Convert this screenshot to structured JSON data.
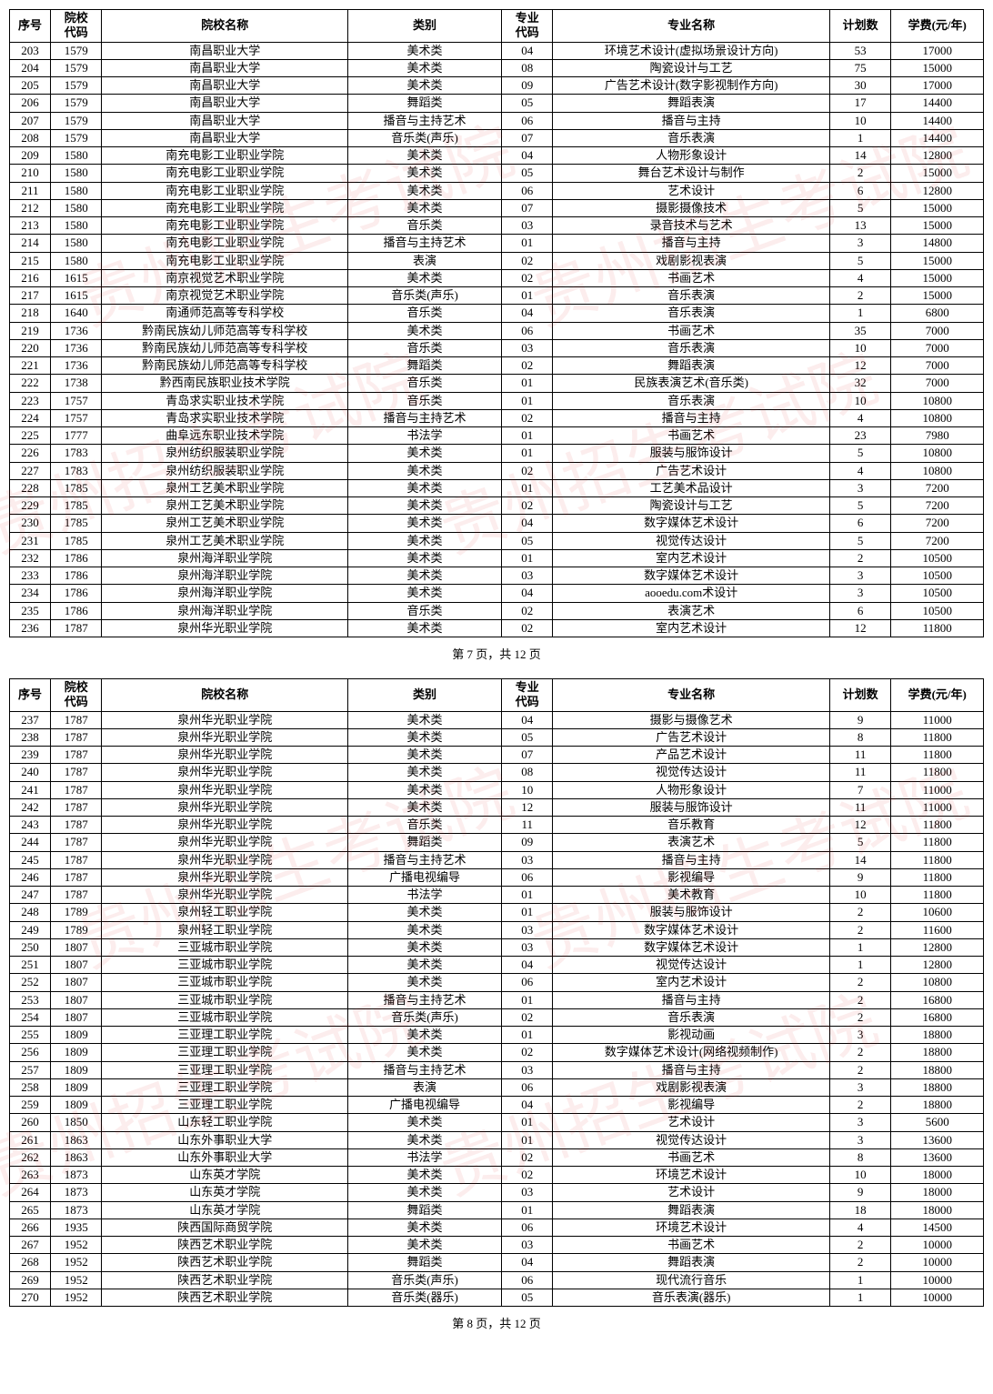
{
  "headers": {
    "seq": "序号",
    "code": "院校\n代码",
    "school": "院校名称",
    "cat": "类别",
    "mcode": "专业\n代码",
    "major": "专业名称",
    "plan": "计划数",
    "fee": "学费(元/年)"
  },
  "pageLabel1": "第 7 页，共 12 页",
  "pageLabel2": "第 8 页，共 12 页",
  "watermarkText": "贵州招生考试院",
  "table1": [
    [
      "203",
      "1579",
      "南昌职业大学",
      "美术类",
      "04",
      "环境艺术设计(虚拟场景设计方向)",
      "53",
      "17000"
    ],
    [
      "204",
      "1579",
      "南昌职业大学",
      "美术类",
      "08",
      "陶瓷设计与工艺",
      "75",
      "15000"
    ],
    [
      "205",
      "1579",
      "南昌职业大学",
      "美术类",
      "09",
      "广告艺术设计(数字影视制作方向)",
      "30",
      "17000"
    ],
    [
      "206",
      "1579",
      "南昌职业大学",
      "舞蹈类",
      "05",
      "舞蹈表演",
      "17",
      "14400"
    ],
    [
      "207",
      "1579",
      "南昌职业大学",
      "播音与主持艺术",
      "06",
      "播音与主持",
      "10",
      "14400"
    ],
    [
      "208",
      "1579",
      "南昌职业大学",
      "音乐类(声乐)",
      "07",
      "音乐表演",
      "1",
      "14400"
    ],
    [
      "209",
      "1580",
      "南充电影工业职业学院",
      "美术类",
      "04",
      "人物形象设计",
      "14",
      "12800"
    ],
    [
      "210",
      "1580",
      "南充电影工业职业学院",
      "美术类",
      "05",
      "舞台艺术设计与制作",
      "2",
      "15000"
    ],
    [
      "211",
      "1580",
      "南充电影工业职业学院",
      "美术类",
      "06",
      "艺术设计",
      "6",
      "12800"
    ],
    [
      "212",
      "1580",
      "南充电影工业职业学院",
      "美术类",
      "07",
      "摄影摄像技术",
      "5",
      "15000"
    ],
    [
      "213",
      "1580",
      "南充电影工业职业学院",
      "音乐类",
      "03",
      "录音技术与艺术",
      "13",
      "15000"
    ],
    [
      "214",
      "1580",
      "南充电影工业职业学院",
      "播音与主持艺术",
      "01",
      "播音与主持",
      "3",
      "14800"
    ],
    [
      "215",
      "1580",
      "南充电影工业职业学院",
      "表演",
      "02",
      "戏剧影视表演",
      "5",
      "15000"
    ],
    [
      "216",
      "1615",
      "南京视觉艺术职业学院",
      "美术类",
      "02",
      "书画艺术",
      "4",
      "15000"
    ],
    [
      "217",
      "1615",
      "南京视觉艺术职业学院",
      "音乐类(声乐)",
      "01",
      "音乐表演",
      "2",
      "15000"
    ],
    [
      "218",
      "1640",
      "南通师范高等专科学校",
      "音乐类",
      "04",
      "音乐表演",
      "1",
      "6800"
    ],
    [
      "219",
      "1736",
      "黔南民族幼儿师范高等专科学校",
      "美术类",
      "06",
      "书画艺术",
      "35",
      "7000"
    ],
    [
      "220",
      "1736",
      "黔南民族幼儿师范高等专科学校",
      "音乐类",
      "03",
      "音乐表演",
      "10",
      "7000"
    ],
    [
      "221",
      "1736",
      "黔南民族幼儿师范高等专科学校",
      "舞蹈类",
      "02",
      "舞蹈表演",
      "12",
      "7000"
    ],
    [
      "222",
      "1738",
      "黔西南民族职业技术学院",
      "音乐类",
      "01",
      "民族表演艺术(音乐类)",
      "32",
      "7000"
    ],
    [
      "223",
      "1757",
      "青岛求实职业技术学院",
      "音乐类",
      "01",
      "音乐表演",
      "10",
      "10800"
    ],
    [
      "224",
      "1757",
      "青岛求实职业技术学院",
      "播音与主持艺术",
      "02",
      "播音与主持",
      "4",
      "10800"
    ],
    [
      "225",
      "1777",
      "曲阜远东职业技术学院",
      "书法学",
      "01",
      "书画艺术",
      "23",
      "7980"
    ],
    [
      "226",
      "1783",
      "泉州纺织服装职业学院",
      "美术类",
      "01",
      "服装与服饰设计",
      "5",
      "10800"
    ],
    [
      "227",
      "1783",
      "泉州纺织服装职业学院",
      "美术类",
      "02",
      "广告艺术设计",
      "4",
      "10800"
    ],
    [
      "228",
      "1785",
      "泉州工艺美术职业学院",
      "美术类",
      "01",
      "工艺美术品设计",
      "3",
      "7200"
    ],
    [
      "229",
      "1785",
      "泉州工艺美术职业学院",
      "美术类",
      "02",
      "陶瓷设计与工艺",
      "5",
      "7200"
    ],
    [
      "230",
      "1785",
      "泉州工艺美术职业学院",
      "美术类",
      "04",
      "数字媒体艺术设计",
      "6",
      "7200"
    ],
    [
      "231",
      "1785",
      "泉州工艺美术职业学院",
      "美术类",
      "05",
      "视觉传达设计",
      "5",
      "7200"
    ],
    [
      "232",
      "1786",
      "泉州海洋职业学院",
      "美术类",
      "01",
      "室内艺术设计",
      "2",
      "10500"
    ],
    [
      "233",
      "1786",
      "泉州海洋职业学院",
      "美术类",
      "03",
      "数字媒体艺术设计",
      "3",
      "10500"
    ],
    [
      "234",
      "1786",
      "泉州海洋职业学院",
      "美术类",
      "04",
      "aooedu.com术设计",
      "3",
      "10500"
    ],
    [
      "235",
      "1786",
      "泉州海洋职业学院",
      "音乐类",
      "02",
      "表演艺术",
      "6",
      "10500"
    ],
    [
      "236",
      "1787",
      "泉州华光职业学院",
      "美术类",
      "02",
      "室内艺术设计",
      "12",
      "11800"
    ]
  ],
  "table2": [
    [
      "237",
      "1787",
      "泉州华光职业学院",
      "美术类",
      "04",
      "摄影与摄像艺术",
      "9",
      "11000"
    ],
    [
      "238",
      "1787",
      "泉州华光职业学院",
      "美术类",
      "05",
      "广告艺术设计",
      "8",
      "11800"
    ],
    [
      "239",
      "1787",
      "泉州华光职业学院",
      "美术类",
      "07",
      "产品艺术设计",
      "11",
      "11800"
    ],
    [
      "240",
      "1787",
      "泉州华光职业学院",
      "美术类",
      "08",
      "视觉传达设计",
      "11",
      "11800"
    ],
    [
      "241",
      "1787",
      "泉州华光职业学院",
      "美术类",
      "10",
      "人物形象设计",
      "7",
      "11000"
    ],
    [
      "242",
      "1787",
      "泉州华光职业学院",
      "美术类",
      "12",
      "服装与服饰设计",
      "11",
      "11000"
    ],
    [
      "243",
      "1787",
      "泉州华光职业学院",
      "音乐类",
      "11",
      "音乐教育",
      "12",
      "11800"
    ],
    [
      "244",
      "1787",
      "泉州华光职业学院",
      "舞蹈类",
      "09",
      "表演艺术",
      "5",
      "11800"
    ],
    [
      "245",
      "1787",
      "泉州华光职业学院",
      "播音与主持艺术",
      "03",
      "播音与主持",
      "14",
      "11800"
    ],
    [
      "246",
      "1787",
      "泉州华光职业学院",
      "广播电视编导",
      "06",
      "影视编导",
      "9",
      "11800"
    ],
    [
      "247",
      "1787",
      "泉州华光职业学院",
      "书法学",
      "01",
      "美术教育",
      "10",
      "11800"
    ],
    [
      "248",
      "1789",
      "泉州轻工职业学院",
      "美术类",
      "01",
      "服装与服饰设计",
      "2",
      "10600"
    ],
    [
      "249",
      "1789",
      "泉州轻工职业学院",
      "美术类",
      "03",
      "数字媒体艺术设计",
      "2",
      "11600"
    ],
    [
      "250",
      "1807",
      "三亚城市职业学院",
      "美术类",
      "03",
      "数字媒体艺术设计",
      "1",
      "12800"
    ],
    [
      "251",
      "1807",
      "三亚城市职业学院",
      "美术类",
      "04",
      "视觉传达设计",
      "1",
      "12800"
    ],
    [
      "252",
      "1807",
      "三亚城市职业学院",
      "美术类",
      "06",
      "室内艺术设计",
      "2",
      "10800"
    ],
    [
      "253",
      "1807",
      "三亚城市职业学院",
      "播音与主持艺术",
      "01",
      "播音与主持",
      "2",
      "16800"
    ],
    [
      "254",
      "1807",
      "三亚城市职业学院",
      "音乐类(声乐)",
      "02",
      "音乐表演",
      "2",
      "16800"
    ],
    [
      "255",
      "1809",
      "三亚理工职业学院",
      "美术类",
      "01",
      "影视动画",
      "3",
      "18800"
    ],
    [
      "256",
      "1809",
      "三亚理工职业学院",
      "美术类",
      "02",
      "数字媒体艺术设计(网络视频制作)",
      "2",
      "18800"
    ],
    [
      "257",
      "1809",
      "三亚理工职业学院",
      "播音与主持艺术",
      "03",
      "播音与主持",
      "2",
      "18800"
    ],
    [
      "258",
      "1809",
      "三亚理工职业学院",
      "表演",
      "06",
      "戏剧影视表演",
      "3",
      "18800"
    ],
    [
      "259",
      "1809",
      "三亚理工职业学院",
      "广播电视编导",
      "04",
      "影视编导",
      "2",
      "18800"
    ],
    [
      "260",
      "1850",
      "山东轻工职业学院",
      "美术类",
      "01",
      "艺术设计",
      "3",
      "5600"
    ],
    [
      "261",
      "1863",
      "山东外事职业大学",
      "美术类",
      "01",
      "视觉传达设计",
      "3",
      "13600"
    ],
    [
      "262",
      "1863",
      "山东外事职业大学",
      "书法学",
      "02",
      "书画艺术",
      "8",
      "13600"
    ],
    [
      "263",
      "1873",
      "山东英才学院",
      "美术类",
      "02",
      "环境艺术设计",
      "10",
      "18000"
    ],
    [
      "264",
      "1873",
      "山东英才学院",
      "美术类",
      "03",
      "艺术设计",
      "9",
      "18000"
    ],
    [
      "265",
      "1873",
      "山东英才学院",
      "舞蹈类",
      "01",
      "舞蹈表演",
      "18",
      "18000"
    ],
    [
      "266",
      "1935",
      "陕西国际商贸学院",
      "美术类",
      "06",
      "环境艺术设计",
      "4",
      "14500"
    ],
    [
      "267",
      "1952",
      "陕西艺术职业学院",
      "美术类",
      "03",
      "书画艺术",
      "2",
      "10000"
    ],
    [
      "268",
      "1952",
      "陕西艺术职业学院",
      "舞蹈类",
      "04",
      "舞蹈表演",
      "2",
      "10000"
    ],
    [
      "269",
      "1952",
      "陕西艺术职业学院",
      "音乐类(声乐)",
      "06",
      "现代流行音乐",
      "1",
      "10000"
    ],
    [
      "270",
      "1952",
      "陕西艺术职业学院",
      "音乐类(器乐)",
      "05",
      "音乐表演(器乐)",
      "1",
      "10000"
    ]
  ]
}
